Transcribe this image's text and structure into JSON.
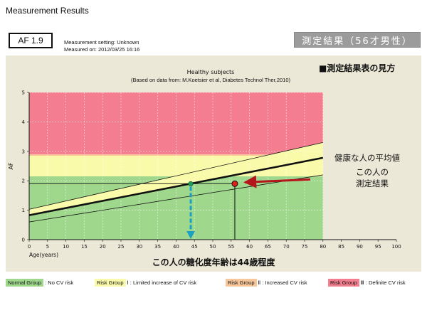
{
  "header": {
    "title": "Measurement Results",
    "af_value": "AF  1.9",
    "setting": "Measurement setting: Unknown",
    "measured_on": "Measured on: 2012/03/25 16:16",
    "result_tag": "測定結果（56才男性）"
  },
  "colors": {
    "panel_bg": "#ece8d7",
    "normal": "#9fd88d",
    "risk1": "#fafbaa",
    "risk2": "#f7c79b",
    "risk3": "#f47e8f",
    "arrow_red": "#b5161b",
    "arrow_blue": "#1b9fc2",
    "point_green": "#1f9c5a"
  },
  "chart_data": {
    "type": "line",
    "title": "Healthy subjects",
    "subtitle": "(Based on data from: M.Koetsier et al, Diabetes Technol Ther,2010)",
    "guide_heading": "■測定結果表の見方",
    "xlabel": "Age(years)",
    "ylabel": "AF",
    "xlim": [
      0,
      100
    ],
    "ylim": [
      0,
      5
    ],
    "x_ticks": [
      0,
      5,
      10,
      15,
      20,
      25,
      30,
      35,
      40,
      45,
      50,
      55,
      60,
      65,
      70,
      75,
      80,
      85,
      90,
      95,
      100
    ],
    "y_ticks": [
      0,
      1,
      2,
      3,
      4,
      5
    ],
    "plot_x_end": 80,
    "zones": [
      {
        "name": "Normal Group",
        "from": 0,
        "to": 2.15,
        "color": "#9fd88d"
      },
      {
        "name": "Risk Group Ⅰ",
        "from": 2.15,
        "to": 2.85,
        "color": "#fafbaa"
      },
      {
        "name": "Risk Group Ⅱ",
        "from": 2.85,
        "to": 2.9,
        "color": "#f7c79b"
      },
      {
        "name": "Risk Group Ⅲ",
        "from": 2.9,
        "to": 5,
        "color": "#f47e8f"
      }
    ],
    "series": [
      {
        "name": "健康な人の平均値",
        "x": [
          0,
          80
        ],
        "y": [
          0.83,
          2.78
        ],
        "width": 2.6
      },
      {
        "x": [
          0,
          80
        ],
        "y": [
          1.03,
          3.3
        ],
        "width": 0.8
      },
      {
        "x": [
          0,
          80
        ],
        "y": [
          0.6,
          2.2
        ],
        "width": 0.8
      }
    ],
    "measurement": {
      "age": 56,
      "af": 1.9
    },
    "equivalent": {
      "age": 44,
      "af": 1.9
    },
    "annotations": {
      "mean_label": "健康な人の平均値",
      "measurement_label_1": "この人の",
      "measurement_label_2": "測定結果",
      "glycation_age": "この人の糖化度年齢は44歳程度"
    }
  },
  "legend": [
    {
      "tag": "Normal Group",
      "desc": " : No CV risk",
      "color": "#9fd88d"
    },
    {
      "tag": "Risk Group",
      "desc": " Ⅰ : Limited increase of CV risk",
      "color": "#fafbaa"
    },
    {
      "tag": "Risk Group",
      "desc": " Ⅱ : Increased CV risk",
      "color": "#f7c79b"
    },
    {
      "tag": "Risk Group",
      "desc": " Ⅲ : Definite CV risk",
      "color": "#f47e8f"
    }
  ]
}
